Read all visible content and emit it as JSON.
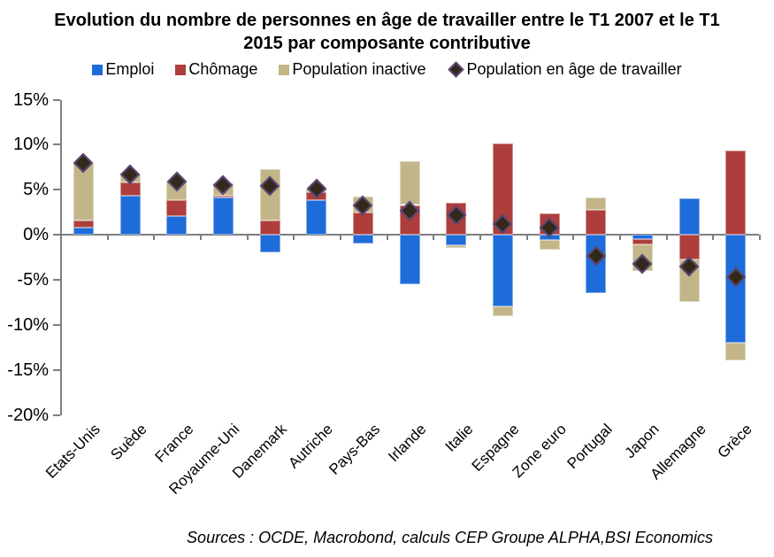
{
  "chart_data": {
    "type": "bar",
    "stacked": true,
    "title": "Evolution du nombre de personnes en âge de travailler entre le T1 2007 et le T1 2015 par composante contributive",
    "source": "Sources : OCDE, Macrobond, calculs  CEP Groupe ALPHA,BSI Economics",
    "categories": [
      "Etats-Unis",
      "Suède",
      "France",
      "Royaume-Uni",
      "Danemark",
      "Autriche",
      "Pays-Bas",
      "Irlande",
      "Italie",
      "Espagne",
      "Zone euro",
      "Portugal",
      "Japon",
      "Allemagne",
      "Grèce"
    ],
    "series": [
      {
        "name": "Emploi",
        "color": "#1e6cd9",
        "values": [
          0.8,
          4.3,
          2.1,
          4.1,
          -2.0,
          3.8,
          -1.0,
          -5.5,
          -1.2,
          -8.0,
          -0.6,
          -6.5,
          -0.5,
          4.0,
          -12.0
        ]
      },
      {
        "name": "Chômage",
        "color": "#ae3e3c",
        "values": [
          0.8,
          1.5,
          1.7,
          0.2,
          1.6,
          0.9,
          2.5,
          3.3,
          3.5,
          10.1,
          2.4,
          2.8,
          -0.6,
          -2.7,
          9.3
        ]
      },
      {
        "name": "Population inactive",
        "color": "#c2b689",
        "values": [
          6.4,
          0.9,
          2.1,
          1.4,
          5.7,
          0.4,
          1.7,
          4.9,
          -0.3,
          -1.0,
          -1.1,
          1.3,
          -2.9,
          -4.8,
          -2.0
        ]
      }
    ],
    "marker_series": {
      "name": "Population en âge de travailler",
      "fill": "#32291b",
      "border": "#5c4877",
      "values": [
        8.0,
        6.7,
        5.9,
        5.5,
        5.4,
        5.1,
        3.3,
        2.7,
        2.2,
        1.2,
        0.8,
        -2.4,
        -3.2,
        -3.5,
        -4.7
      ]
    },
    "ylabel": "",
    "xlabel": "",
    "ylim": [
      -20,
      15
    ],
    "yticks": [
      {
        "value": 15,
        "label": "15%"
      },
      {
        "value": 10,
        "label": "10%"
      },
      {
        "value": 5,
        "label": "5%"
      },
      {
        "value": 0,
        "label": "0%"
      },
      {
        "value": -5,
        "label": "-5%"
      },
      {
        "value": -10,
        "label": "-10%"
      },
      {
        "value": -15,
        "label": "-15%"
      },
      {
        "value": -20,
        "label": "-20%"
      }
    ],
    "grid": false,
    "legend_position": "top",
    "axis_color": "#7f7f7f"
  }
}
